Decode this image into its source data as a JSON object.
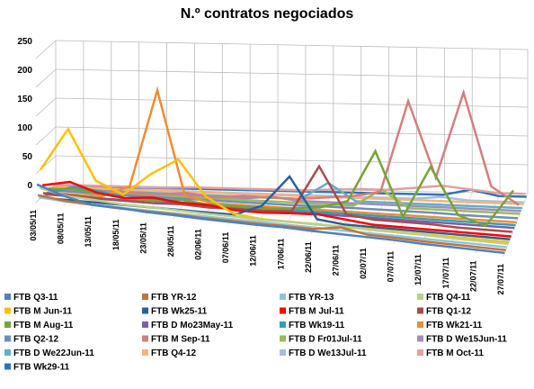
{
  "chart_data": {
    "type": "line3d",
    "title": "N.º contratos negociados",
    "categories": [
      "03/05/11",
      "08/05/11",
      "13/05/11",
      "18/05/11",
      "23/05/11",
      "28/05/11",
      "02/06/11",
      "07/06/11",
      "12/06/11",
      "17/06/11",
      "22/06/11",
      "27/06/11",
      "02/07/11",
      "07/07/11",
      "12/07/11",
      "17/07/11",
      "22/07/11",
      "27/07/11"
    ],
    "ylim": [
      0,
      250
    ],
    "yticks": [
      0,
      50,
      100,
      150,
      200,
      250
    ],
    "grid": true,
    "series": [
      {
        "name": "FTB Q3-11",
        "color": "#4f81bd",
        "values": [
          30,
          15,
          5,
          5,
          3,
          3,
          2,
          2,
          2,
          3,
          2,
          2,
          2,
          2,
          1,
          1,
          1,
          1
        ]
      },
      {
        "name": "FTB YR-12",
        "color": "#c0753b",
        "values": [
          10,
          5,
          3,
          2,
          2,
          2,
          1,
          1,
          1,
          2,
          2,
          10,
          2,
          2,
          1,
          1,
          1,
          1
        ]
      },
      {
        "name": "FTB YR-13",
        "color": "#8fc4d8",
        "values": [
          5,
          2,
          2,
          1,
          1,
          1,
          1,
          1,
          1,
          1,
          1,
          1,
          1,
          1,
          1,
          1,
          1,
          1
        ]
      },
      {
        "name": "FTB Q4-11",
        "color": "#b8d08f",
        "values": [
          20,
          10,
          8,
          5,
          5,
          4,
          3,
          3,
          2,
          3,
          3,
          4,
          3,
          3,
          3,
          2,
          2,
          2
        ]
      },
      {
        "name": "FTB M Jun-11",
        "color": "#ffc000",
        "values": [
          50,
          125,
          40,
          20,
          60,
          90,
          30,
          5,
          0,
          0,
          0,
          0,
          0,
          0,
          0,
          0,
          0,
          0
        ]
      },
      {
        "name": "FTB Wk25-11",
        "color": "#2c5f97",
        "values": [
          0,
          0,
          0,
          0,
          0,
          0,
          0,
          0,
          20,
          75,
          5,
          0,
          0,
          0,
          0,
          0,
          0,
          0
        ]
      },
      {
        "name": "FTB M Jul-11",
        "color": "#ff0000",
        "values": [
          20,
          30,
          15,
          10,
          15,
          10,
          10,
          5,
          5,
          8,
          10,
          5,
          0,
          0,
          0,
          0,
          0,
          0
        ]
      },
      {
        "name": "FTB Q1-12",
        "color": "#a64d4d",
        "values": [
          5,
          5,
          3,
          3,
          3,
          5,
          3,
          5,
          5,
          8,
          90,
          10,
          5,
          5,
          5,
          3,
          3,
          3
        ]
      },
      {
        "name": "FTB M Aug-11",
        "color": "#77a33a",
        "values": [
          10,
          15,
          10,
          5,
          5,
          10,
          5,
          5,
          5,
          10,
          15,
          30,
          120,
          10,
          100,
          20,
          5,
          70
        ]
      },
      {
        "name": "FTB D Mo23May-11",
        "color": "#7f5fa8",
        "values": [
          0,
          0,
          0,
          0,
          5,
          0,
          0,
          0,
          0,
          0,
          0,
          0,
          0,
          0,
          0,
          0,
          0,
          0
        ]
      },
      {
        "name": "FTB Wk19-11",
        "color": "#31a0b8",
        "values": [
          0,
          15,
          10,
          0,
          0,
          0,
          0,
          0,
          0,
          0,
          0,
          0,
          0,
          0,
          0,
          0,
          0,
          0
        ]
      },
      {
        "name": "FTB Wk21-11",
        "color": "#f08c30",
        "values": [
          0,
          0,
          0,
          20,
          190,
          10,
          0,
          0,
          0,
          0,
          0,
          0,
          0,
          0,
          0,
          0,
          0,
          0
        ]
      },
      {
        "name": "FTB Q2-12",
        "color": "#6c8ebf",
        "values": [
          3,
          3,
          2,
          2,
          2,
          2,
          2,
          2,
          2,
          2,
          3,
          3,
          3,
          3,
          3,
          2,
          2,
          2
        ]
      },
      {
        "name": "FTB M Sep-11",
        "color": "#d27f7f",
        "values": [
          5,
          5,
          5,
          5,
          5,
          10,
          5,
          10,
          10,
          10,
          15,
          20,
          30,
          190,
          60,
          210,
          50,
          20
        ]
      },
      {
        "name": "FTB D Fr01Jul-11",
        "color": "#9bbb59",
        "values": [
          0,
          0,
          0,
          0,
          0,
          0,
          0,
          0,
          0,
          0,
          0,
          0,
          30,
          0,
          0,
          0,
          0,
          0
        ]
      },
      {
        "name": "FTB D We15Jun-11",
        "color": "#9f8dc0",
        "values": [
          0,
          0,
          0,
          0,
          0,
          0,
          0,
          0,
          5,
          0,
          0,
          0,
          0,
          0,
          0,
          0,
          0,
          0
        ]
      },
      {
        "name": "FTB D We22Jun-11",
        "color": "#5fb0c8",
        "values": [
          0,
          0,
          0,
          0,
          0,
          0,
          0,
          0,
          0,
          0,
          30,
          0,
          0,
          0,
          0,
          0,
          0,
          0
        ]
      },
      {
        "name": "FTB Q4-12",
        "color": "#f9b27a",
        "values": [
          2,
          2,
          2,
          2,
          2,
          2,
          2,
          2,
          2,
          2,
          2,
          2,
          2,
          2,
          2,
          2,
          2,
          2
        ]
      },
      {
        "name": "FTB D We13Jul-11",
        "color": "#a9bde0",
        "values": [
          0,
          0,
          0,
          0,
          0,
          0,
          0,
          0,
          0,
          0,
          0,
          0,
          0,
          0,
          5,
          0,
          0,
          0
        ]
      },
      {
        "name": "FTB M Oct-11",
        "color": "#e2a0a0",
        "values": [
          3,
          3,
          3,
          3,
          3,
          5,
          5,
          5,
          5,
          5,
          8,
          10,
          10,
          15,
          20,
          15,
          10,
          10
        ]
      },
      {
        "name": "FTB Wk29-11",
        "color": "#2e75b6",
        "values": [
          0,
          0,
          0,
          0,
          0,
          0,
          0,
          0,
          0,
          0,
          0,
          0,
          0,
          0,
          0,
          10,
          0,
          0
        ]
      }
    ]
  }
}
